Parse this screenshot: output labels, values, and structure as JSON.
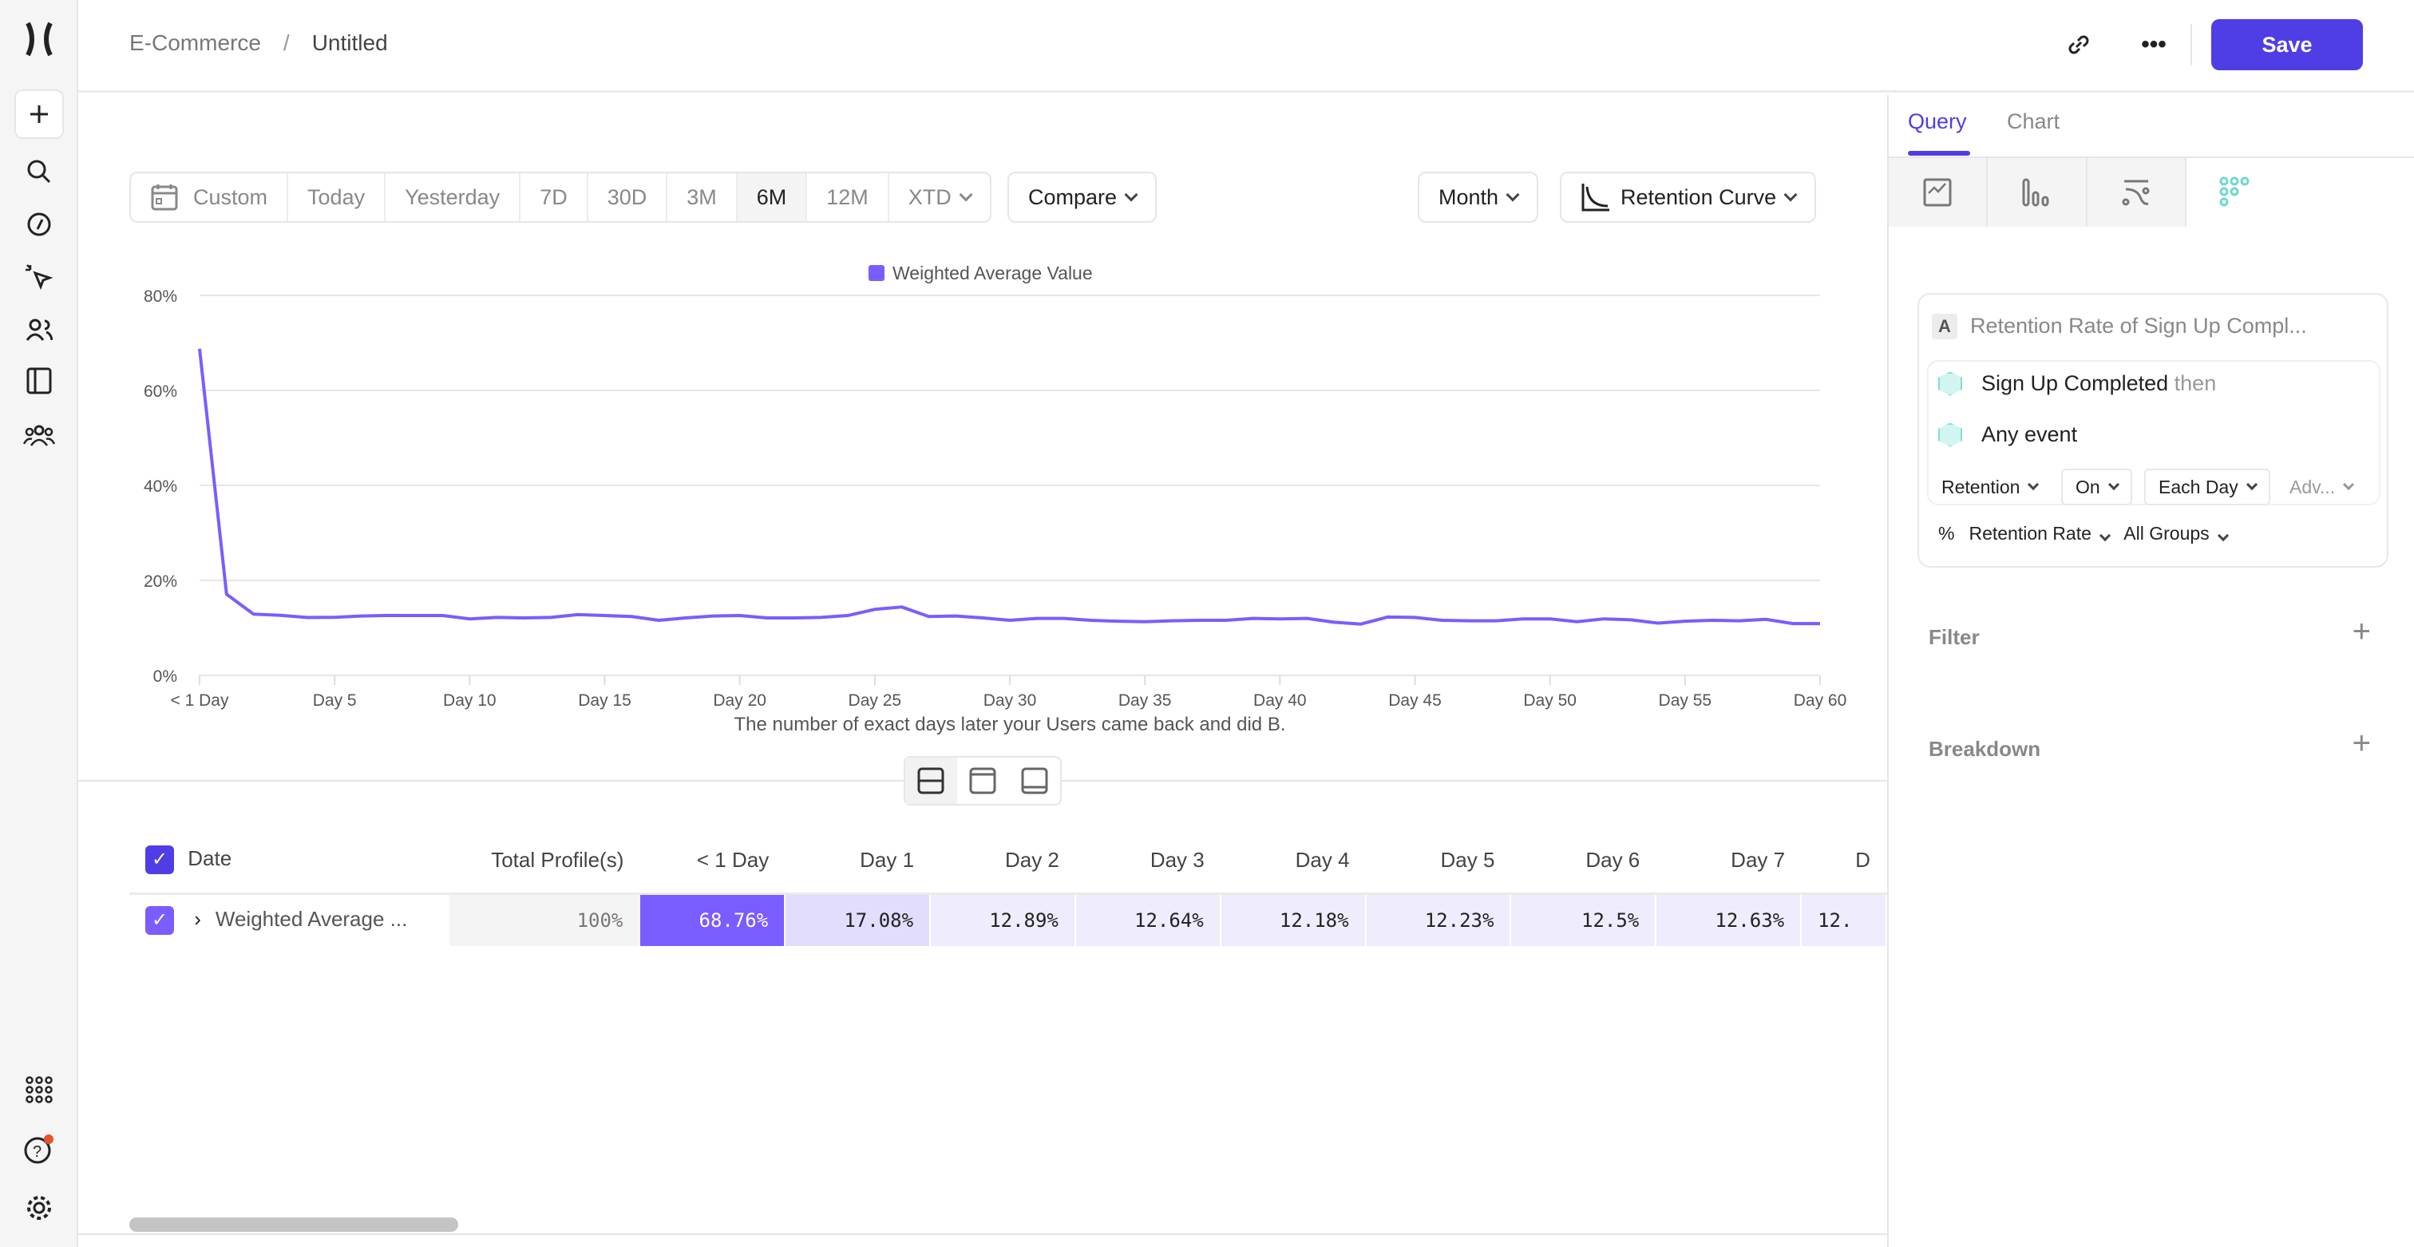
{
  "header": {
    "breadcrumb": [
      "E-Commerce",
      "Untitled"
    ],
    "separator": "/",
    "save_label": "Save",
    "link_icon": "link-icon",
    "more_icon": "more-icon"
  },
  "sidebar": {
    "icons": [
      "logo",
      "plus-icon",
      "search-icon",
      "compass-icon",
      "cursor-click-icon",
      "users-icon",
      "book-icon",
      "groups-icon",
      "apps-grid-icon",
      "help-icon",
      "settings-icon"
    ]
  },
  "toolbar": {
    "date_ranges": [
      "Custom",
      "Today",
      "Yesterday",
      "7D",
      "30D",
      "3M",
      "6M",
      "12M",
      "XTD"
    ],
    "active_range": "6M",
    "compare": "Compare",
    "interval": "Month",
    "chart_type": "Retention Curve"
  },
  "chart_data": {
    "type": "line",
    "legend": "Weighted Average Value",
    "legend_position": "top-center",
    "xlabel": "The number of exact days later your Users came back and did B.",
    "ylabel": "",
    "ylim": [
      0,
      80
    ],
    "yticks": [
      "0%",
      "20%",
      "40%",
      "60%",
      "80%"
    ],
    "xticks": [
      "< 1 Day",
      "Day 5",
      "Day 10",
      "Day 15",
      "Day 20",
      "Day 25",
      "Day 30",
      "Day 35",
      "Day 40",
      "Day 45",
      "Day 50",
      "Day 55",
      "Day 60"
    ],
    "grid": true,
    "color": "#7b5cff",
    "series": [
      {
        "name": "Weighted Average Value",
        "x_days": [
          0,
          1,
          2,
          3,
          4,
          5,
          6,
          7,
          8,
          9,
          10,
          11,
          12,
          13,
          14,
          15,
          16,
          17,
          18,
          19,
          20,
          21,
          22,
          23,
          24,
          25,
          26,
          27,
          28,
          29,
          30,
          31,
          32,
          33,
          34,
          35,
          36,
          37,
          38,
          39,
          40,
          41,
          42,
          43,
          44,
          45,
          46,
          47,
          48,
          49,
          50,
          51,
          52,
          53,
          54,
          55,
          56,
          57,
          58,
          59,
          60
        ],
        "values": [
          68.76,
          17.08,
          12.89,
          12.64,
          12.18,
          12.23,
          12.5,
          12.63,
          12.6,
          12.6,
          11.9,
          12.2,
          12.1,
          12.2,
          12.8,
          12.6,
          12.4,
          11.6,
          12.1,
          12.5,
          12.6,
          12.1,
          12.1,
          12.2,
          12.6,
          13.9,
          14.4,
          12.4,
          12.5,
          12.1,
          11.6,
          12.0,
          12.0,
          11.6,
          11.4,
          11.3,
          11.5,
          11.6,
          11.6,
          12.0,
          11.9,
          12.0,
          11.2,
          10.8,
          12.3,
          12.2,
          11.6,
          11.5,
          11.5,
          11.9,
          11.9,
          11.3,
          11.9,
          11.7,
          11.0,
          11.4,
          11.6,
          11.5,
          11.8,
          10.9,
          10.9
        ]
      }
    ]
  },
  "layout_toggle": {
    "icons": [
      "split-view-icon",
      "top-panel-icon",
      "bottom-panel-icon"
    ]
  },
  "table": {
    "columns": [
      "Date",
      "Total Profile(s)",
      "< 1 Day",
      "Day 1",
      "Day 2",
      "Day 3",
      "Day 4",
      "Day 5",
      "Day 6",
      "Day 7",
      "D"
    ],
    "rows": [
      {
        "label": "Weighted Average ...",
        "cells": [
          "100%",
          "68.76%",
          "17.08%",
          "12.89%",
          "12.64%",
          "12.18%",
          "12.23%",
          "12.5%",
          "12.63%",
          "12."
        ]
      }
    ]
  },
  "panel": {
    "tabs": [
      "Query",
      "Chart"
    ],
    "active_tab": "Query",
    "accent": "#4f3ee5",
    "viz_icons": [
      "insights-icon",
      "funnel-icon",
      "flows-icon",
      "retention-icon"
    ],
    "metric": {
      "letter": "A",
      "title": "Retention Rate of Sign Up Compl...",
      "event1": "Sign Up Completed",
      "then": "then",
      "event2": "Any event",
      "retention": "Retention",
      "on": "On",
      "each_day": "Each Day",
      "adv": "Adv...",
      "percent": "%",
      "rate": "Retention Rate",
      "groups": "All Groups"
    },
    "filter": "Filter",
    "breakdown": "Breakdown"
  }
}
